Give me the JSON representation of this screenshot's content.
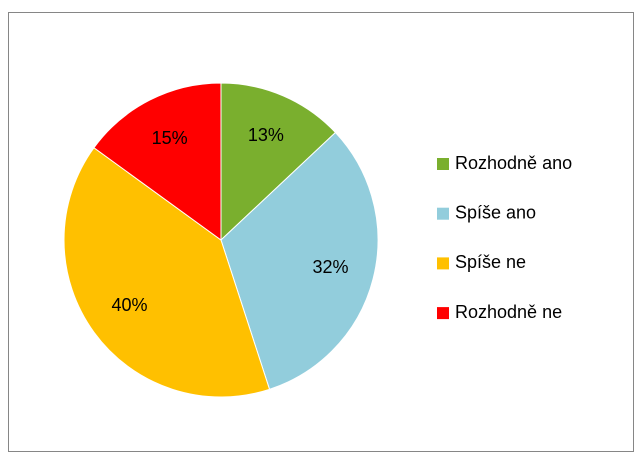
{
  "chart_data": {
    "type": "pie",
    "categories": [
      "Rozhodně ano",
      "Spíše ano",
      "Spíše ne",
      "Rozhodně ne"
    ],
    "values": [
      13,
      32,
      40,
      15
    ],
    "value_labels": [
      "13%",
      "32%",
      "40%",
      "15%"
    ],
    "colors": [
      "#7aaf2e",
      "#92cddc",
      "#ffc000",
      "#ff0000"
    ],
    "legend": "right"
  }
}
